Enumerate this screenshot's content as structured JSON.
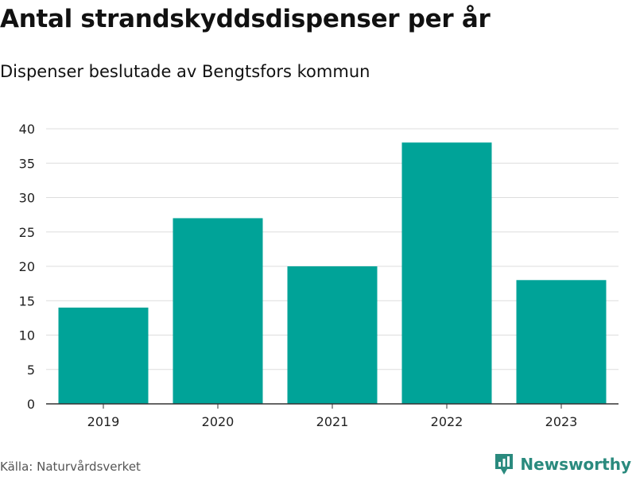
{
  "title": "Antal strandskyddsdispenser per år",
  "subtitle": "Dispenser beslutade av Bengtsfors kommun",
  "source": "Källa: Naturvårdsverket",
  "brand": {
    "name": "Newsworthy",
    "icon": "newsworthy-logo-icon"
  },
  "colors": {
    "bar": "#00a398",
    "grid": "#dddddd",
    "axis": "#333333",
    "brand": "#2a8a7e"
  },
  "chart_data": {
    "type": "bar",
    "title": "Antal strandskyddsdispenser per år",
    "subtitle": "Dispenser beslutade av Bengtsfors kommun",
    "categories": [
      "2019",
      "2020",
      "2021",
      "2022",
      "2023"
    ],
    "values": [
      14,
      27,
      20,
      38,
      18
    ],
    "xlabel": "",
    "ylabel": "",
    "ylim": [
      0,
      40
    ],
    "yticks": [
      0,
      5,
      10,
      15,
      20,
      25,
      30,
      35,
      40
    ],
    "grid": true,
    "legend": "none"
  }
}
